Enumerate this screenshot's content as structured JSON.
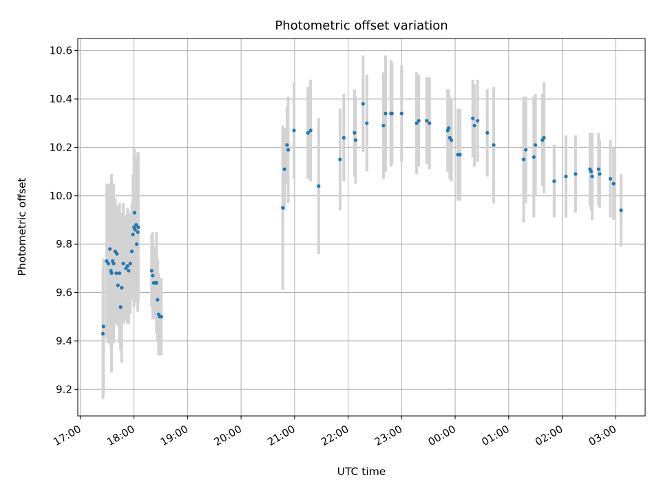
{
  "chart_data": {
    "type": "scatter",
    "title": "Photometric offset variation",
    "xlabel": "UTC time",
    "ylabel": "Photometric offset",
    "x_unit": "hours",
    "xlim": [
      16.95,
      27.55
    ],
    "ylim": [
      9.09,
      10.65
    ],
    "x_ticks": [
      {
        "x": 17,
        "label": "17:00"
      },
      {
        "x": 18,
        "label": "18:00"
      },
      {
        "x": 19,
        "label": "19:00"
      },
      {
        "x": 20,
        "label": "20:00"
      },
      {
        "x": 21,
        "label": "21:00"
      },
      {
        "x": 22,
        "label": "22:00"
      },
      {
        "x": 23,
        "label": "23:00"
      },
      {
        "x": 24,
        "label": "00:00"
      },
      {
        "x": 25,
        "label": "01:00"
      },
      {
        "x": 26,
        "label": "02:00"
      },
      {
        "x": 27,
        "label": "03:00"
      }
    ],
    "y_ticks": [
      9.2,
      9.4,
      9.6,
      9.8,
      10.0,
      10.2,
      10.4,
      10.6
    ],
    "y_tick_labels": [
      "9.2",
      "9.4",
      "9.6",
      "9.8",
      "10.0",
      "10.2",
      "10.4",
      "10.6"
    ],
    "grid": true,
    "point_color": "#1f77b4",
    "errorbar_color": "#d3d3d3",
    "points": [
      [
        17.42,
        9.43,
        0.27
      ],
      [
        17.43,
        9.46,
        0.28
      ],
      [
        17.49,
        9.73,
        0.32
      ],
      [
        17.52,
        9.72,
        0.33
      ],
      [
        17.55,
        9.78,
        0.27
      ],
      [
        17.57,
        9.69,
        0.32
      ],
      [
        17.58,
        9.68,
        0.41
      ],
      [
        17.6,
        9.73,
        0.31
      ],
      [
        17.62,
        9.72,
        0.33
      ],
      [
        17.65,
        9.77,
        0.22
      ],
      [
        17.67,
        9.68,
        0.21
      ],
      [
        17.68,
        9.76,
        0.2
      ],
      [
        17.7,
        9.63,
        0.17
      ],
      [
        17.73,
        9.68,
        0.29
      ],
      [
        17.75,
        9.54,
        0.18
      ],
      [
        17.77,
        9.62,
        0.31
      ],
      [
        17.8,
        9.72,
        0.25
      ],
      [
        17.85,
        9.7,
        0.22
      ],
      [
        17.88,
        9.71,
        0.24
      ],
      [
        17.9,
        9.69,
        0.22
      ],
      [
        17.93,
        9.72,
        0.21
      ],
      [
        17.96,
        9.77,
        0.2
      ],
      [
        17.98,
        9.84,
        0.25
      ],
      [
        18.0,
        9.87,
        0.33
      ],
      [
        18.01,
        9.93,
        0.26
      ],
      [
        18.02,
        9.86,
        0.3
      ],
      [
        18.04,
        9.88,
        0.24
      ],
      [
        18.05,
        9.8,
        0.22
      ],
      [
        18.07,
        9.85,
        0.33
      ],
      [
        18.08,
        9.87,
        0.31
      ],
      [
        18.33,
        9.69,
        0.15
      ],
      [
        18.35,
        9.67,
        0.18
      ],
      [
        18.37,
        9.64,
        0.15
      ],
      [
        18.4,
        9.64,
        0.14
      ],
      [
        18.42,
        9.64,
        0.21
      ],
      [
        18.44,
        9.57,
        0.17
      ],
      [
        18.46,
        9.51,
        0.17
      ],
      [
        18.48,
        9.5,
        0.15
      ],
      [
        18.51,
        9.5,
        0.16
      ],
      [
        20.78,
        9.95,
        0.34
      ],
      [
        20.81,
        10.11,
        0.17
      ],
      [
        20.86,
        10.21,
        0.16
      ],
      [
        20.88,
        10.19,
        0.22
      ],
      [
        20.99,
        10.27,
        0.2
      ],
      [
        21.25,
        10.26,
        0.19
      ],
      [
        21.3,
        10.27,
        0.21
      ],
      [
        21.45,
        10.04,
        0.28
      ],
      [
        21.85,
        10.15,
        0.21
      ],
      [
        21.92,
        10.24,
        0.18
      ],
      [
        22.12,
        10.26,
        0.18
      ],
      [
        22.14,
        10.23,
        0.18
      ],
      [
        22.28,
        10.38,
        0.2
      ],
      [
        22.35,
        10.3,
        0.2
      ],
      [
        22.66,
        10.29,
        0.22
      ],
      [
        22.7,
        10.34,
        0.24
      ],
      [
        22.8,
        10.34,
        0.22
      ],
      [
        22.82,
        10.34,
        0.21
      ],
      [
        23.0,
        10.34,
        0.2
      ],
      [
        23.28,
        10.3,
        0.21
      ],
      [
        23.32,
        10.31,
        0.19
      ],
      [
        23.47,
        10.31,
        0.18
      ],
      [
        23.52,
        10.3,
        0.19
      ],
      [
        23.86,
        10.27,
        0.17
      ],
      [
        23.88,
        10.28,
        0.16
      ],
      [
        23.9,
        10.24,
        0.17
      ],
      [
        23.93,
        10.23,
        0.17
      ],
      [
        24.05,
        10.17,
        0.19
      ],
      [
        24.09,
        10.17,
        0.19
      ],
      [
        24.33,
        10.32,
        0.16
      ],
      [
        24.36,
        10.29,
        0.17
      ],
      [
        24.42,
        10.31,
        0.17
      ],
      [
        24.6,
        10.26,
        0.18
      ],
      [
        24.72,
        10.21,
        0.24
      ],
      [
        25.28,
        10.15,
        0.26
      ],
      [
        25.32,
        10.19,
        0.22
      ],
      [
        25.47,
        10.16,
        0.25
      ],
      [
        25.5,
        10.21,
        0.21
      ],
      [
        25.63,
        10.23,
        0.19
      ],
      [
        25.66,
        10.24,
        0.23
      ],
      [
        25.85,
        10.06,
        0.15
      ],
      [
        26.07,
        10.08,
        0.17
      ],
      [
        26.25,
        10.09,
        0.16
      ],
      [
        26.52,
        10.11,
        0.15
      ],
      [
        26.54,
        10.1,
        0.16
      ],
      [
        26.56,
        10.08,
        0.18
      ],
      [
        26.68,
        10.11,
        0.15
      ],
      [
        26.7,
        10.09,
        0.14
      ],
      [
        26.9,
        10.07,
        0.16
      ],
      [
        26.96,
        10.05,
        0.15
      ],
      [
        27.1,
        9.94,
        0.15
      ]
    ]
  }
}
